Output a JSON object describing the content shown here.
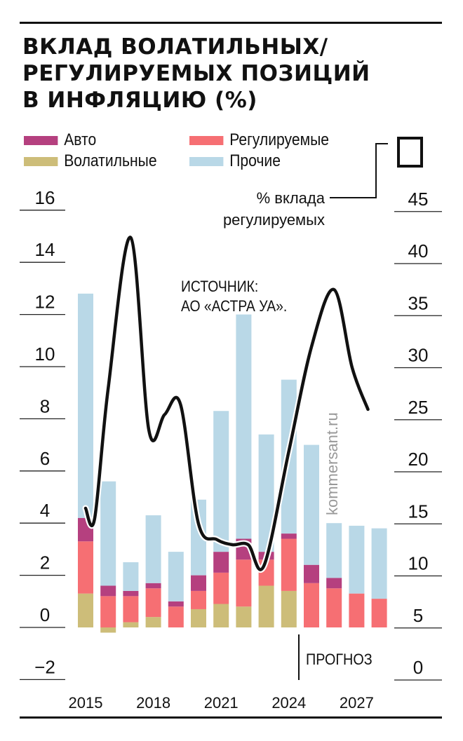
{
  "title": [
    "ВКЛАД ВОЛАТИЛЬНЫХ/",
    "РЕГУЛИРУЕМЫХ ПОЗИЦИЙ",
    "В ИНФЛЯЦИЮ (%)"
  ],
  "legend": {
    "auto": "Авто",
    "regulated": "Регулируемые",
    "volatile": "Волатильные",
    "other": "Прочие",
    "line": [
      "% вклада",
      "регулируемых"
    ]
  },
  "source": [
    "ИСТОЧНИК:",
    "АО «АСТРА УА»."
  ],
  "watermark": "kommersant.ru",
  "forecast_label": "ПРОГНОЗ",
  "colors": {
    "auto": "#b5407f",
    "regulated": "#f66f73",
    "volatile": "#cdbd79",
    "other": "#b9d8e7",
    "line": "#111111"
  },
  "chart_data": {
    "type": "bar",
    "stacked": true,
    "x_tick_labels": [
      "2015",
      "2018",
      "2021",
      "2024",
      "2027"
    ],
    "left_axis": {
      "ticks": [
        "16",
        "14",
        "12",
        "10",
        "8",
        "6",
        "4",
        "2",
        "0",
        "−2"
      ],
      "range": [
        -2,
        16
      ]
    },
    "right_axis": {
      "ticks": [
        "45",
        "40",
        "35",
        "30",
        "25",
        "20",
        "15",
        "10",
        "5",
        "0"
      ],
      "range": [
        0,
        45
      ]
    },
    "years": [
      2015,
      2016,
      2017,
      2018,
      2019,
      2020,
      2021,
      2022,
      2023,
      2024,
      2025,
      2026,
      2027,
      2028
    ],
    "series": [
      {
        "name": "Волатильные",
        "values": [
          1.3,
          -0.2,
          0.2,
          0.4,
          0.0,
          0.7,
          0.9,
          0.8,
          1.6,
          1.4,
          0.0,
          0.0,
          0.0,
          0.0
        ]
      },
      {
        "name": "Регулируемые",
        "values": [
          2.0,
          1.2,
          1.0,
          1.1,
          0.8,
          0.7,
          1.2,
          1.8,
          1.0,
          2.0,
          1.7,
          1.5,
          1.3,
          1.1
        ]
      },
      {
        "name": "Авто",
        "values": [
          0.9,
          0.4,
          0.2,
          0.2,
          0.2,
          0.6,
          0.8,
          0.8,
          0.3,
          0.2,
          0.7,
          0.4,
          0.0,
          0.0
        ]
      },
      {
        "name": "Прочие",
        "values": [
          8.6,
          4.0,
          1.1,
          2.6,
          1.9,
          2.9,
          5.4,
          8.6,
          4.5,
          5.9,
          4.6,
          2.1,
          2.6,
          2.7
        ]
      }
    ],
    "forecast_from": 2025,
    "line": {
      "name": "% вклада регулируемых",
      "axis": "right",
      "points": [
        [
          2015,
          16.5
        ],
        [
          2015.4,
          15.5
        ],
        [
          2016,
          28.0
        ],
        [
          2017,
          42.5
        ],
        [
          2017.8,
          24.0
        ],
        [
          2018.5,
          25.5
        ],
        [
          2019.2,
          26.5
        ],
        [
          2020,
          15.0
        ],
        [
          2020.8,
          13.5
        ],
        [
          2021.5,
          13.0
        ],
        [
          2022.2,
          13.0
        ],
        [
          2022.9,
          11.0
        ],
        [
          2024,
          22.0
        ],
        [
          2025,
          32.0
        ],
        [
          2026,
          37.5
        ],
        [
          2026.8,
          30.0
        ],
        [
          2027.5,
          26.0
        ]
      ]
    }
  }
}
